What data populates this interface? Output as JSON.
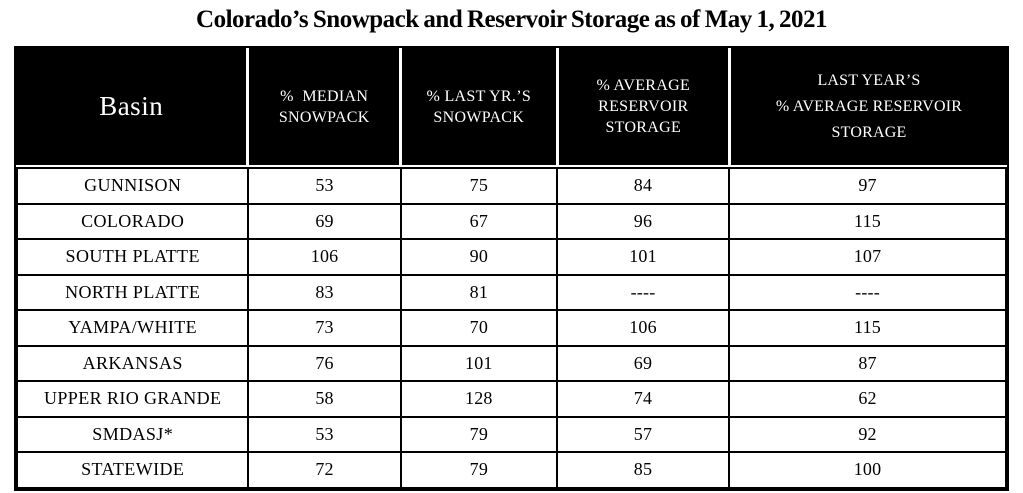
{
  "title": "Colorado’s Snowpack and Reservoir Storage as of May 1, 2021",
  "table": {
    "headers": {
      "basin": "Basin",
      "median_snowpack": [
        "%  MEDIAN",
        "SNOWPACK"
      ],
      "last_yr_snowpack": [
        "% LAST YR.’S",
        "SNOWPACK"
      ],
      "avg_reservoir_storage": [
        "% AVERAGE",
        "RESERVOIR",
        "STORAGE"
      ],
      "last_year_avg_reservoir_storage": [
        "LAST YEAR’S",
        "% AVERAGE RESERVOIR",
        "STORAGE"
      ]
    },
    "rows": [
      {
        "basin": "GUNNISON",
        "values": [
          "53",
          "75",
          "84",
          "97"
        ]
      },
      {
        "basin": "COLORADO",
        "values": [
          "69",
          "67",
          "96",
          "115"
        ]
      },
      {
        "basin": "SOUTH PLATTE",
        "values": [
          "106",
          "90",
          "101",
          "107"
        ]
      },
      {
        "basin": "NORTH PLATTE",
        "values": [
          "83",
          "81",
          "----",
          "----"
        ]
      },
      {
        "basin": "YAMPA/WHITE",
        "values": [
          "73",
          "70",
          "106",
          "115"
        ]
      },
      {
        "basin": "ARKANSAS",
        "values": [
          "76",
          "101",
          "69",
          "87"
        ]
      },
      {
        "basin": "UPPER RIO GRANDE",
        "values": [
          "58",
          "128",
          "74",
          "62"
        ]
      },
      {
        "basin": "SMDASJ*",
        "values": [
          "53",
          "79",
          "57",
          "92"
        ]
      },
      {
        "basin": "STATEWIDE",
        "values": [
          "72",
          "79",
          "85",
          "100"
        ]
      }
    ]
  },
  "colors": {
    "header_bg": "#000000",
    "header_text": "#ffffff",
    "grid": "#000000",
    "page_bg": "#ffffff"
  },
  "chart_data": {
    "type": "table",
    "title": "Colorado’s Snowpack and Reservoir Storage as of May 1, 2021",
    "columns": [
      "Basin",
      "% MEDIAN SNOWPACK",
      "% LAST YR.’S SNOWPACK",
      "% AVERAGE RESERVOIR STORAGE",
      "LAST YEAR’S % AVERAGE RESERVOIR STORAGE"
    ],
    "rows": [
      [
        "GUNNISON",
        53,
        75,
        84,
        97
      ],
      [
        "COLORADO",
        69,
        67,
        96,
        115
      ],
      [
        "SOUTH PLATTE",
        106,
        90,
        101,
        107
      ],
      [
        "NORTH PLATTE",
        83,
        81,
        null,
        null
      ],
      [
        "YAMPA/WHITE",
        73,
        70,
        106,
        115
      ],
      [
        "ARKANSAS",
        76,
        101,
        69,
        87
      ],
      [
        "UPPER RIO GRANDE",
        58,
        128,
        74,
        62
      ],
      [
        "SMDASJ*",
        53,
        79,
        57,
        92
      ],
      [
        "STATEWIDE",
        72,
        79,
        85,
        100
      ]
    ]
  }
}
